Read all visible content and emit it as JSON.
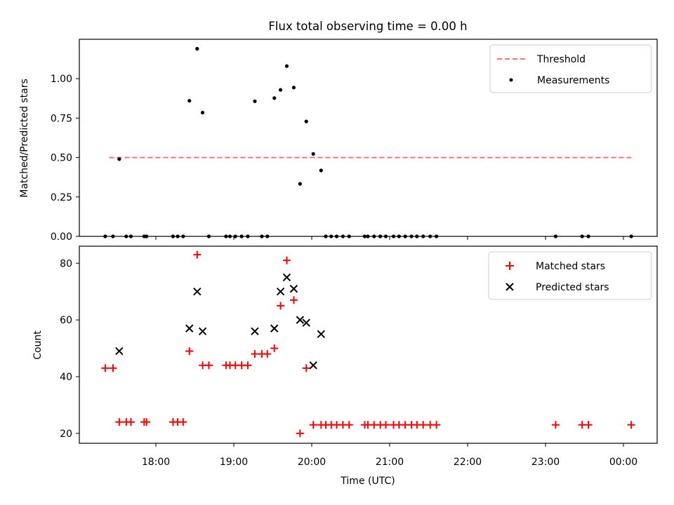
{
  "chart_data": [
    {
      "type": "scatter",
      "title": "Flux total observing time = 0.00 h",
      "xlabel": "",
      "ylabel": "Matched/Predicted stars",
      "ylim": [
        0,
        1.25
      ],
      "yticks": [
        "0.00",
        "0.25",
        "0.50",
        "0.75",
        "1.00"
      ],
      "xticks": [
        "18:00",
        "19:00",
        "20:00",
        "21:00",
        "22:00",
        "23:00",
        "00:00"
      ],
      "legend_position": "top-right",
      "series": [
        {
          "name": "Threshold",
          "style": "dashed-line",
          "color": "#ff7070",
          "x": [
            17.4,
            24.1
          ],
          "y": [
            0.5,
            0.5
          ]
        },
        {
          "name": "Measurements",
          "style": "dot",
          "color": "#000000",
          "x": [
            17.35,
            17.45,
            17.53,
            17.62,
            17.68,
            17.85,
            17.88,
            18.22,
            18.28,
            18.35,
            18.43,
            18.53,
            18.6,
            18.68,
            18.9,
            18.95,
            19.02,
            19.1,
            19.18,
            19.27,
            19.36,
            19.43,
            19.52,
            19.6,
            19.68,
            19.77,
            19.85,
            19.93,
            20.02,
            20.12,
            20.18,
            20.25,
            20.32,
            20.4,
            20.48,
            20.68,
            20.72,
            20.8,
            20.88,
            20.95,
            21.05,
            21.12,
            21.2,
            21.28,
            21.35,
            21.43,
            21.52,
            21.6,
            23.13,
            23.47,
            23.55,
            24.1
          ],
          "y": [
            0.0,
            0.0,
            0.49,
            0.0,
            0.0,
            0.0,
            0.0,
            0.0,
            0.0,
            0.0,
            0.86,
            1.19,
            0.785,
            0.0,
            0.0,
            0.0,
            0.0,
            0.0,
            0.0,
            0.857,
            0.0,
            0.0,
            0.877,
            0.929,
            1.08,
            0.944,
            0.333,
            0.729,
            0.523,
            0.418,
            0.0,
            0.0,
            0.0,
            0.0,
            0.0,
            0.0,
            0.0,
            0.0,
            0.0,
            0.0,
            0.0,
            0.0,
            0.0,
            0.0,
            0.0,
            0.0,
            0.0,
            0.0,
            0.0,
            0.0,
            0.0,
            0.0
          ]
        }
      ]
    },
    {
      "type": "scatter",
      "title": "",
      "xlabel": "Time (UTC)",
      "ylabel": "Count",
      "ylim": [
        16.5,
        86
      ],
      "yticks": [
        "20",
        "40",
        "60",
        "80"
      ],
      "xticks": [
        "18:00",
        "19:00",
        "20:00",
        "21:00",
        "22:00",
        "23:00",
        "00:00"
      ],
      "legend_position": "top-right",
      "series": [
        {
          "name": "Matched stars",
          "style": "plus",
          "color": "#ff0000",
          "x": [
            17.35,
            17.45,
            17.53,
            17.62,
            17.68,
            17.85,
            17.88,
            18.22,
            18.28,
            18.35,
            18.43,
            18.53,
            18.6,
            18.68,
            18.9,
            18.95,
            19.02,
            19.1,
            19.18,
            19.27,
            19.36,
            19.43,
            19.52,
            19.6,
            19.68,
            19.77,
            19.85,
            19.93,
            20.02,
            20.12,
            20.18,
            20.25,
            20.32,
            20.4,
            20.48,
            20.68,
            20.72,
            20.8,
            20.88,
            20.95,
            21.05,
            21.12,
            21.2,
            21.28,
            21.35,
            21.43,
            21.52,
            21.6,
            23.13,
            23.47,
            23.55,
            24.1
          ],
          "y": [
            43,
            43,
            24,
            24,
            24,
            24,
            24,
            24,
            24,
            24,
            49,
            83,
            44,
            44,
            44,
            44,
            44,
            44,
            44,
            48,
            48,
            48,
            50,
            65,
            81,
            67,
            20,
            43,
            23,
            23,
            23,
            23,
            23,
            23,
            23,
            23,
            23,
            23,
            23,
            23,
            23,
            23,
            23,
            23,
            23,
            23,
            23,
            23,
            23,
            23,
            23,
            23
          ]
        },
        {
          "name": "Predicted stars",
          "style": "x",
          "color": "#000000",
          "x": [
            17.53,
            18.43,
            18.53,
            18.6,
            19.27,
            19.52,
            19.6,
            19.68,
            19.77,
            19.85,
            19.93,
            20.02,
            20.12
          ],
          "y": [
            49,
            57,
            70,
            56,
            56,
            57,
            70,
            75,
            71,
            60,
            59,
            44,
            55
          ]
        }
      ]
    }
  ]
}
